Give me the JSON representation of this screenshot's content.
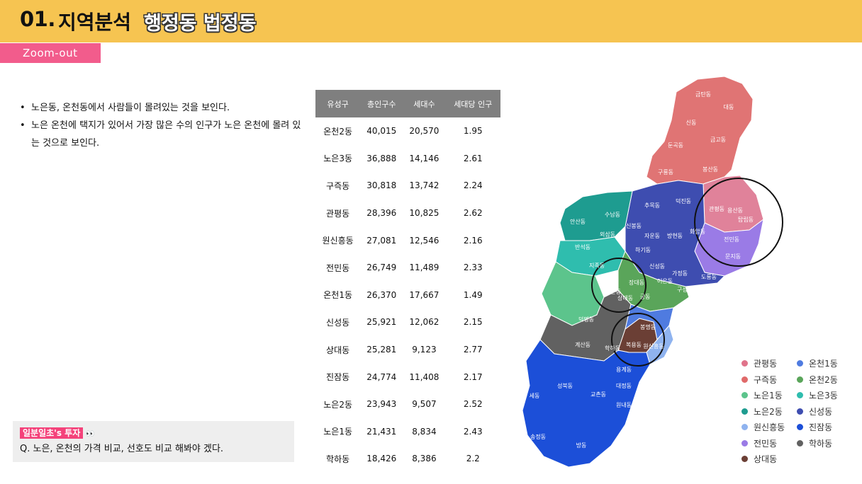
{
  "header": {
    "num": "01.",
    "title": "지역분석",
    "subtitle": "행정동 법정동"
  },
  "zoom_tag": "Zoom-out",
  "bullets": [
    "노은동, 온천동에서 사람들이 몰려있는 것을 보인다.",
    "노은 온천에 택지가 있어서 가장 많은 수의 인구가 노은 온천에 몰려 있는 것으로 보인다."
  ],
  "note": {
    "badge": "일분일초's 투자",
    "eyes": "👀",
    "text": "Q.  노은, 온천의 가격 비교, 선호도 비교 해봐야 겠다."
  },
  "table": {
    "headers": [
      "유성구",
      "총인구수",
      "세대수",
      "세대당 인구"
    ],
    "rows": [
      [
        "온천2동",
        "40,015",
        "20,570",
        "1.95"
      ],
      [
        "노은3동",
        "36,888",
        "14,146",
        "2.61"
      ],
      [
        "구즉동",
        "30,818",
        "13,742",
        "2.24"
      ],
      [
        "관평동",
        "28,396",
        "10,825",
        "2.62"
      ],
      [
        "원신흥동",
        "27,081",
        "12,546",
        "2.16"
      ],
      [
        "전민동",
        "26,749",
        "11,489",
        "2.33"
      ],
      [
        "온천1동",
        "26,370",
        "17,667",
        "1.49"
      ],
      [
        "신성동",
        "25,921",
        "12,062",
        "2.15"
      ],
      [
        "상대동",
        "25,281",
        "9,123",
        "2.77"
      ],
      [
        "진잠동",
        "24,774",
        "11,408",
        "2.17"
      ],
      [
        "노은2동",
        "23,943",
        "9,507",
        "2.52"
      ],
      [
        "노은1동",
        "21,431",
        "8,834",
        "2.43"
      ],
      [
        "학하동",
        "18,426",
        "8,386",
        "2.2"
      ]
    ]
  },
  "map_labels": [
    "금탄동",
    "대동",
    "신동",
    "금고동",
    "둔곡동",
    "구룡동",
    "봉산동",
    "추목동",
    "덕진동",
    "관평동",
    "용산동",
    "탑립동",
    "신봉동",
    "자운동",
    "방현동",
    "화암동",
    "전민동",
    "문지동",
    "안산동",
    "수남동",
    "외삼동",
    "반석동",
    "하기동",
    "신성동",
    "가정동",
    "도룡동",
    "지족동",
    "궁동",
    "구성동",
    "노은동",
    "상대동",
    "장대동",
    "어은동",
    "덕명동",
    "봉명동",
    "복용동",
    "계산동",
    "학하동",
    "원신흥동",
    "용계동",
    "성북동",
    "세동",
    "교촌동",
    "대정동",
    "원내동",
    "송정동",
    "방동"
  ],
  "legend": [
    {
      "name": "관평동",
      "color": "#e0738a"
    },
    {
      "name": "온천1동",
      "color": "#4f7be0"
    },
    {
      "name": "구즉동",
      "color": "#e06a6a"
    },
    {
      "name": "온천2동",
      "color": "#5aa55a"
    },
    {
      "name": "노은1동",
      "color": "#5cc48c"
    },
    {
      "name": "노은3동",
      "color": "#2fbdae"
    },
    {
      "name": "노은2동",
      "color": "#1e9c90"
    },
    {
      "name": "신성동",
      "color": "#3e4db0"
    },
    {
      "name": "원신흥동",
      "color": "#8fb3ef"
    },
    {
      "name": "진잠동",
      "color": "#1c4fd8"
    },
    {
      "name": "전민동",
      "color": "#9a7be6"
    },
    {
      "name": "학하동",
      "color": "#616161"
    },
    {
      "name": "상대동",
      "color": "#6b3f35"
    }
  ]
}
